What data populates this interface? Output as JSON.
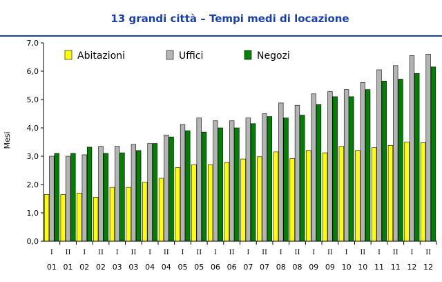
{
  "chart_data": {
    "type": "bar",
    "title": "13 grandi città – Tempi medi di locazione",
    "ylabel": "Mesi",
    "xlabel": "",
    "ylim": [
      0,
      7
    ],
    "yticks": [
      "0,0",
      "1,0",
      "2,0",
      "3,0",
      "4,0",
      "5,0",
      "6,0",
      "7,0"
    ],
    "categories": [
      {
        "sem": "I",
        "year": "01"
      },
      {
        "sem": "II",
        "year": "01"
      },
      {
        "sem": "I",
        "year": "02"
      },
      {
        "sem": "II",
        "year": "02"
      },
      {
        "sem": "I",
        "year": "03"
      },
      {
        "sem": "II",
        "year": "03"
      },
      {
        "sem": "I",
        "year": "04"
      },
      {
        "sem": "II",
        "year": "04"
      },
      {
        "sem": "I",
        "year": "05"
      },
      {
        "sem": "II",
        "year": "05"
      },
      {
        "sem": "I",
        "year": "06"
      },
      {
        "sem": "II",
        "year": "06"
      },
      {
        "sem": "I",
        "year": "07"
      },
      {
        "sem": "II",
        "year": "07"
      },
      {
        "sem": "I",
        "year": "08"
      },
      {
        "sem": "II",
        "year": "08"
      },
      {
        "sem": "I",
        "year": "09"
      },
      {
        "sem": "II",
        "year": "09"
      },
      {
        "sem": "I",
        "year": "10"
      },
      {
        "sem": "II",
        "year": "10"
      },
      {
        "sem": "I",
        "year": "11"
      },
      {
        "sem": "II",
        "year": "11"
      },
      {
        "sem": "I",
        "year": "12"
      },
      {
        "sem": "II",
        "year": "12"
      }
    ],
    "series": [
      {
        "name": "Abitazioni",
        "color": "#ffff00",
        "values": [
          1.65,
          1.65,
          1.7,
          1.55,
          1.9,
          1.9,
          2.08,
          2.22,
          2.6,
          2.7,
          2.7,
          2.78,
          2.9,
          2.98,
          3.15,
          2.92,
          3.2,
          3.12,
          3.35,
          3.2,
          3.3,
          3.38,
          3.5,
          3.48
        ]
      },
      {
        "name": "Uffici",
        "color": "#b4b4b4",
        "values": [
          3.0,
          3.0,
          3.05,
          3.35,
          3.35,
          3.42,
          3.45,
          3.75,
          4.12,
          4.35,
          4.25,
          4.25,
          4.35,
          4.5,
          4.88,
          4.8,
          5.2,
          5.28,
          5.35,
          5.6,
          6.05,
          6.2,
          6.55,
          6.6
        ]
      },
      {
        "name": "Negozi",
        "color": "#008000",
        "values": [
          3.1,
          3.1,
          3.32,
          3.1,
          3.12,
          3.2,
          3.45,
          3.68,
          3.9,
          3.85,
          4.0,
          4.0,
          4.15,
          4.4,
          4.35,
          4.45,
          4.82,
          5.1,
          5.1,
          5.35,
          5.65,
          5.72,
          5.92,
          6.15
        ]
      }
    ],
    "legend_position": "top-left",
    "grid": false
  }
}
